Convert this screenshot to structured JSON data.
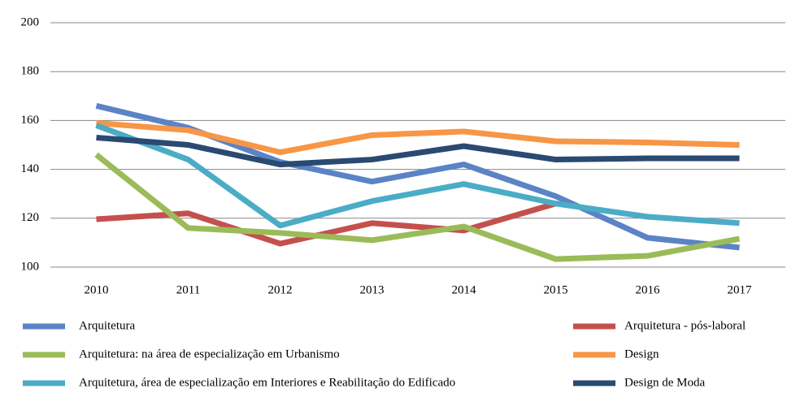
{
  "chart_data": {
    "type": "line",
    "categories": [
      "2010",
      "2011",
      "2012",
      "2013",
      "2014",
      "2015",
      "2016",
      "2017"
    ],
    "series": [
      {
        "name": "Arquitetura",
        "color": "#5b83c6",
        "values": [
          166,
          157,
          143,
          135,
          142,
          129,
          112,
          108
        ]
      },
      {
        "name": "Arquitetura - pós-laboral",
        "color": "#c4504e",
        "values": [
          119.6,
          122,
          109.6,
          118,
          115,
          126,
          null,
          null
        ]
      },
      {
        "name": "Arquitetura: na área de especialização em Urbanismo",
        "color": "#9bbb59",
        "values": [
          146,
          116,
          114,
          111,
          116.6,
          103.3,
          104.6,
          111.6
        ]
      },
      {
        "name": "Design",
        "color": "#f79646",
        "values": [
          159,
          156,
          147,
          154,
          155.5,
          151.5,
          151,
          150
        ]
      },
      {
        "name": "Arquitetura, área de especialização em Interiores e Reabilitação do Edificado",
        "color": "#4bacc6",
        "values": [
          158,
          144,
          117,
          127,
          134,
          126,
          120.6,
          118
        ]
      },
      {
        "name": "Design de Moda",
        "color": "#2a4a72",
        "values": [
          153,
          150,
          142,
          144,
          149.5,
          144,
          144.5,
          144.5
        ]
      }
    ],
    "ylim": [
      100,
      200
    ],
    "yticks": [
      100,
      120,
      140,
      160,
      180,
      200
    ],
    "grid": true
  }
}
